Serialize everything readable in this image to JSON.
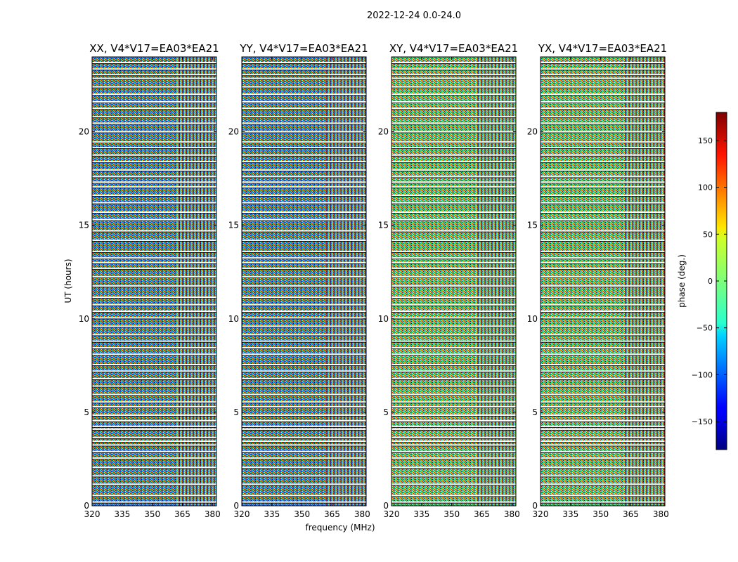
{
  "figure": {
    "suptitle": "2022-12-24 0.0-24.0",
    "ylabel": "UT (hours)",
    "xlabel": "frequency (MHz)"
  },
  "chart_data": {
    "type": "heatmap",
    "title": "2022-12-24 0.0-24.0",
    "xlabel": "frequency (MHz)",
    "ylabel": "UT (hours)",
    "xlim": [
      320,
      382
    ],
    "ylim": [
      0,
      24
    ],
    "x_ticks": [
      320,
      335,
      350,
      365,
      380
    ],
    "y_ticks": [
      0,
      5,
      10,
      15,
      20
    ],
    "panels": [
      {
        "title": "XX, V4*V17=EA03*EA21"
      },
      {
        "title": "YY, V4*V17=EA03*EA21"
      },
      {
        "title": "XY, V4*V17=EA03*EA21"
      },
      {
        "title": "YX, V4*V17=EA03*EA21"
      }
    ],
    "colorbar": {
      "label": "phase (deg.)",
      "colormap": "jet",
      "range": [
        -180,
        180
      ],
      "ticks": [
        -150,
        -100,
        -50,
        0,
        50,
        100,
        150
      ],
      "tick_labels": [
        "−150",
        "−100",
        "−50",
        "0",
        "50",
        "100",
        "150"
      ]
    },
    "flagged_ut_hours": [
      0.2,
      0.55,
      1.15,
      1.6,
      2.05,
      2.55,
      2.9,
      3.25,
      3.45,
      3.65,
      4.1,
      4.25,
      4.55,
      4.85,
      5.3,
      5.55,
      5.95,
      6.4,
      6.8,
      7.2,
      7.55,
      8.1,
      8.45,
      8.8,
      9.15,
      9.6,
      10.05,
      10.4,
      10.75,
      11.15,
      11.75,
      12.25,
      12.7,
      13.0,
      13.25,
      13.6,
      14.2,
      14.7,
      15.3,
      15.7,
      16.2,
      16.6,
      17.05,
      17.3,
      17.6,
      17.95,
      18.4,
      18.75,
      19.15,
      19.45,
      20.0,
      20.45,
      20.8,
      21.25,
      21.6,
      22.0,
      22.4,
      22.85,
      23.05,
      23.35,
      23.7
    ]
  }
}
